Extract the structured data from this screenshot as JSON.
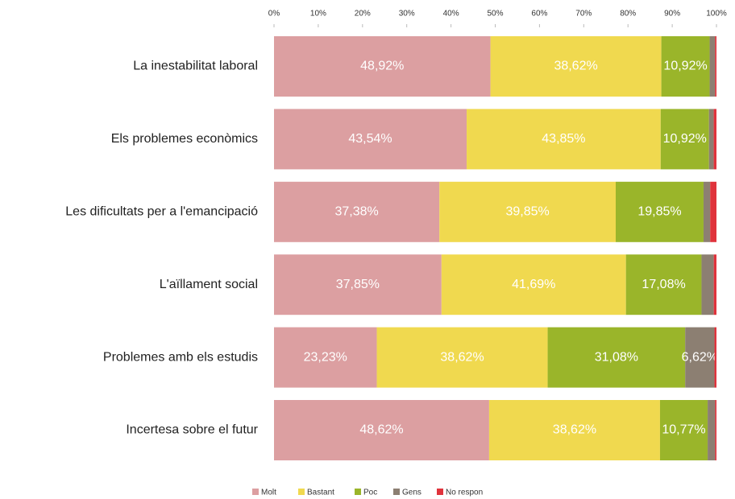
{
  "chart_data": {
    "type": "stacked-barh",
    "categories": [
      "La inestabilitat laboral",
      "Els problemes econòmics",
      "Les dificultats per a l'emancipació",
      "L'aïllament social",
      "Problemes amb els estudis",
      "Incertesa sobre el futur"
    ],
    "series": [
      {
        "name": "Molt",
        "color": "#dc9fa1",
        "values": [
          48.92,
          43.54,
          37.38,
          37.85,
          23.23,
          48.62
        ],
        "value_labels": [
          "48,92%",
          "43,54%",
          "37,38%",
          "37,85%",
          "23,23%",
          "48,62%"
        ]
      },
      {
        "name": "Bastant",
        "color": "#f0d94f",
        "values": [
          38.62,
          43.85,
          39.85,
          41.69,
          38.62,
          38.62
        ],
        "value_labels": [
          "38,62%",
          "43,85%",
          "39,85%",
          "41,69%",
          "38,62%",
          "38,62%"
        ]
      },
      {
        "name": "Poc",
        "color": "#9ab52a",
        "values": [
          10.92,
          10.92,
          19.85,
          17.08,
          31.08,
          10.77
        ],
        "value_labels": [
          "10,92%",
          "10,92%",
          "19,85%",
          "17,08%",
          "31,08%",
          "10,77%"
        ]
      },
      {
        "name": "Gens",
        "color": "#8c7f72",
        "values": [
          1.23,
          1.07,
          1.5,
          2.77,
          6.62,
          1.69
        ],
        "value_labels": [
          null,
          null,
          null,
          null,
          "6,62%",
          null
        ]
      },
      {
        "name": "No respon",
        "color": "#e0333c",
        "values": [
          0.31,
          0.62,
          1.42,
          0.61,
          0.45,
          0.3
        ]
      }
    ],
    "xlim": [
      0,
      100
    ],
    "xticks": [
      {
        "value": 0,
        "label": "0%"
      },
      {
        "value": 10,
        "label": "10%"
      },
      {
        "value": 20,
        "label": "20%"
      },
      {
        "value": 30,
        "label": "30%"
      },
      {
        "value": 40,
        "label": "40%"
      },
      {
        "value": 50,
        "label": "50%"
      },
      {
        "value": 60,
        "label": "60%"
      },
      {
        "value": 70,
        "label": "70%"
      },
      {
        "value": 80,
        "label": "80%"
      },
      {
        "value": 90,
        "label": "90%"
      },
      {
        "value": 100,
        "label": "100%"
      }
    ],
    "legend": "bottom"
  }
}
